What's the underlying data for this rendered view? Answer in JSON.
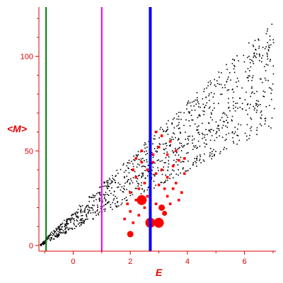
{
  "chart_data": {
    "type": "scatter",
    "xlabel": "E",
    "ylabel": "<M>",
    "xlim": [
      -1.2,
      7.1
    ],
    "ylim": [
      -3,
      126
    ],
    "x_ticks": [
      0,
      2,
      4,
      6
    ],
    "y_ticks": [
      0,
      50,
      100
    ],
    "colors": {
      "axis": "#e00000",
      "background_points": "#000000",
      "highlight_points": "#ff0000",
      "line_green": "#008000",
      "line_magenta": "#e000e0",
      "line_blue": "#0000ff"
    },
    "vertical_lines": [
      {
        "x": -0.95,
        "color": "#008000",
        "style": "thin"
      },
      {
        "x": 1.0,
        "color": "#e000e0",
        "style": "thin"
      },
      {
        "x": 2.7,
        "color": "#0000ff",
        "style": "thick"
      }
    ],
    "background_band": {
      "note": "dense cloud of small black points rising from lower left to upper right",
      "anchor_points": [
        [
          -1.1,
          2
        ],
        [
          0,
          8
        ],
        [
          1,
          18
        ],
        [
          2,
          30
        ],
        [
          3,
          45
        ],
        [
          4,
          60
        ],
        [
          5,
          78
        ],
        [
          6,
          95
        ],
        [
          7,
          118
        ],
        [
          -1.1,
          0
        ],
        [
          0,
          2
        ],
        [
          1,
          8
        ],
        [
          2,
          15
        ],
        [
          3,
          25
        ],
        [
          4,
          35
        ],
        [
          5,
          45
        ],
        [
          6,
          55
        ],
        [
          7,
          65
        ]
      ]
    },
    "highlight_points": [
      [
        2.2,
        24
      ],
      [
        2.6,
        12
      ],
      [
        3.0,
        12
      ],
      [
        3.05,
        20
      ],
      [
        2.0,
        6
      ],
      [
        3.2,
        17
      ],
      [
        2.0,
        28
      ],
      [
        2.3,
        30
      ],
      [
        2.5,
        33
      ],
      [
        2.7,
        35
      ],
      [
        2.9,
        38
      ],
      [
        3.1,
        40
      ],
      [
        3.3,
        36
      ],
      [
        3.5,
        42
      ],
      [
        3.7,
        45
      ],
      [
        2.1,
        40
      ],
      [
        2.4,
        44
      ],
      [
        2.8,
        48
      ],
      [
        3.0,
        52
      ],
      [
        3.4,
        55
      ],
      [
        2.2,
        36
      ],
      [
        2.6,
        26
      ],
      [
        2.9,
        22
      ],
      [
        3.2,
        30
      ],
      [
        3.6,
        33
      ],
      [
        3.8,
        28
      ],
      [
        3.9,
        38
      ],
      [
        2.0,
        18
      ],
      [
        2.3,
        16
      ],
      [
        2.5,
        20
      ],
      [
        2.7,
        24
      ],
      [
        3.3,
        26
      ],
      [
        3.5,
        30
      ],
      [
        3.7,
        24
      ],
      [
        1.8,
        14
      ],
      [
        1.9,
        22
      ],
      [
        2.1,
        12
      ],
      [
        2.6,
        40
      ],
      [
        2.9,
        60
      ],
      [
        3.1,
        58
      ],
      [
        3.3,
        48
      ],
      [
        2.4,
        50
      ],
      [
        2.8,
        44
      ],
      [
        3.6,
        50
      ],
      [
        3.9,
        46
      ],
      [
        2.2,
        46
      ],
      [
        3.0,
        32
      ],
      [
        3.4,
        22
      ]
    ],
    "highlight_large": [
      {
        "x": 2.4,
        "y": 24,
        "size": "large"
      },
      {
        "x": 2.7,
        "y": 12,
        "size": "large"
      },
      {
        "x": 3.0,
        "y": 12,
        "size": "large"
      },
      {
        "x": 3.1,
        "y": 20,
        "size": "medium"
      },
      {
        "x": 2.0,
        "y": 6,
        "size": "medium"
      },
      {
        "x": 3.2,
        "y": 17,
        "size": "small"
      }
    ]
  }
}
